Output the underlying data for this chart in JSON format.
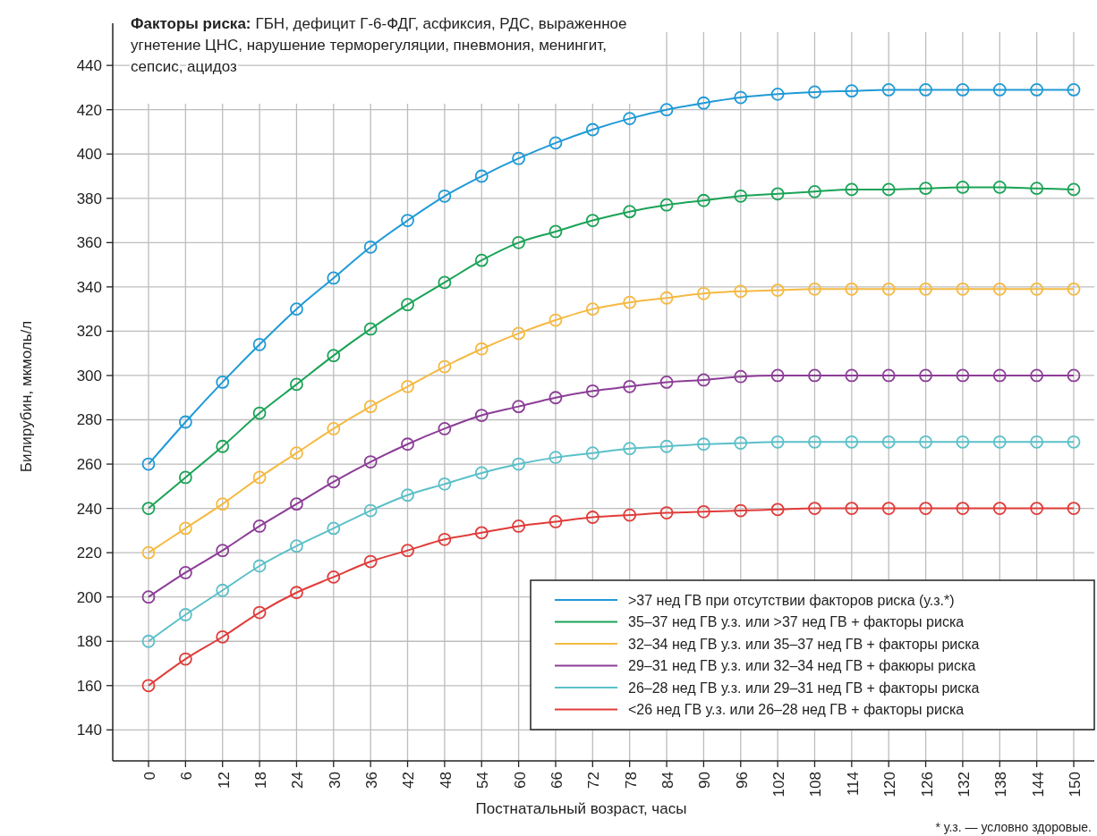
{
  "chart_data": {
    "type": "line",
    "title": "Факторы риска:",
    "subtitle": "ГБН, дефицит Г-6-ФДГ, асфиксия, РДС, выраженное угнетение ЦНС, нарушение терморегуляции, пневмония, менингит, сепсис, ацидоз",
    "xlabel": "Постнатальный возраст, часы",
    "ylabel": "Билирубин, мкмоль/л",
    "categories": [
      "0",
      "6",
      "12",
      "18",
      "24",
      "30",
      "36",
      "42",
      "48",
      "54",
      "60",
      "66",
      "72",
      "78",
      "84",
      "90",
      "96",
      "102",
      "108",
      "114",
      "120",
      "126",
      "132",
      "138",
      "144",
      "150"
    ],
    "series": [
      {
        "name": ">37 нед ГВ при отсутствии факторов риска (у.з.*)",
        "color": "#1f9ad6",
        "values": [
          260,
          279,
          297,
          314,
          330,
          344,
          358,
          370,
          381,
          390,
          398,
          405,
          411,
          416,
          420,
          423,
          425.5,
          427,
          428,
          428.5,
          429,
          429,
          429,
          429,
          429,
          429
        ]
      },
      {
        "name": "35–37 нед ГВ у.з. или >37 нед ГВ + факторы риска",
        "color": "#1aa356",
        "values": [
          240,
          254,
          268,
          283,
          296,
          309,
          321,
          332,
          342,
          352,
          360,
          365,
          370,
          374,
          377,
          379,
          381,
          382,
          383,
          384,
          384,
          384.5,
          385,
          385,
          384.5,
          384
        ]
      },
      {
        "name": "32–34 нед ГВ у.з. или 35–37 нед ГВ + факторы риска",
        "color": "#f5b942",
        "values": [
          220,
          231,
          242,
          254,
          265,
          276,
          286,
          295,
          304,
          312,
          319,
          325,
          330,
          333,
          335,
          337,
          338,
          338.5,
          339,
          339,
          339,
          339,
          339,
          339,
          339,
          339
        ]
      },
      {
        "name": "29–31 нед ГВ у.з. или 32–34 нед ГВ + факюры риска",
        "color": "#8c3d97",
        "values": [
          200,
          211,
          221,
          232,
          242,
          252,
          261,
          269,
          276,
          282,
          286,
          290,
          293,
          295,
          297,
          298,
          299.5,
          300,
          300,
          300,
          300,
          300,
          300,
          300,
          300,
          300
        ]
      },
      {
        "name": "26–28 нед ГВ у.з. или 29–31 нед ГВ + факторы риска",
        "color": "#5bc0c8",
        "values": [
          180,
          192,
          203,
          214,
          223,
          231,
          239,
          246,
          251,
          256,
          260,
          263,
          265,
          267,
          268,
          269,
          269.5,
          270,
          270,
          270,
          270,
          270,
          270,
          270,
          270,
          270
        ]
      },
      {
        "name": "<26 нед ГВ у.з. или 26–28 нед ГВ + факторы риска",
        "color": "#e03c3a",
        "values": [
          160,
          172,
          182,
          193,
          202,
          209,
          216,
          221,
          226,
          229,
          232,
          234,
          236,
          237,
          238,
          238.5,
          239,
          239.5,
          240,
          240,
          240,
          240,
          240,
          240,
          240,
          240
        ]
      }
    ],
    "ylim": [
      126,
      455
    ],
    "yticks": [
      140,
      160,
      180,
      200,
      220,
      240,
      260,
      280,
      300,
      320,
      340,
      360,
      380,
      400,
      420,
      440
    ],
    "grid": true,
    "legend": "bottom right",
    "marker": "circle",
    "line_style": "solid",
    "annotations": [
      "* у.з. — условно здоровые."
    ]
  }
}
